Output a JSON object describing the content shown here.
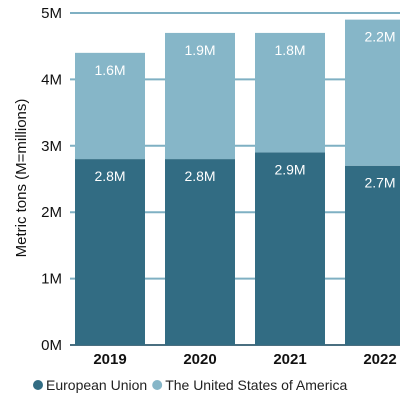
{
  "chart_data": {
    "type": "bar",
    "stacked": true,
    "categories": [
      "2019",
      "2020",
      "2021",
      "2022"
    ],
    "series": [
      {
        "name": "European Union",
        "values": [
          2.8,
          2.8,
          2.9,
          2.7
        ],
        "labels": [
          "2.8M",
          "2.8M",
          "2.9M",
          "2.7M"
        ],
        "color": "#326c83"
      },
      {
        "name": "The United States of America",
        "values": [
          1.6,
          1.9,
          1.8,
          2.2
        ],
        "labels": [
          "1.6M",
          "1.9M",
          "1.8M",
          "2.2M"
        ],
        "color": "#86b6c8"
      }
    ],
    "ylabel": "Metric tons (M=millions)",
    "yticks": [
      "0M",
      "1M",
      "2M",
      "3M",
      "4M",
      "5M"
    ],
    "ylim": [
      0,
      5
    ],
    "grid": true,
    "legend_position": "bottom"
  }
}
